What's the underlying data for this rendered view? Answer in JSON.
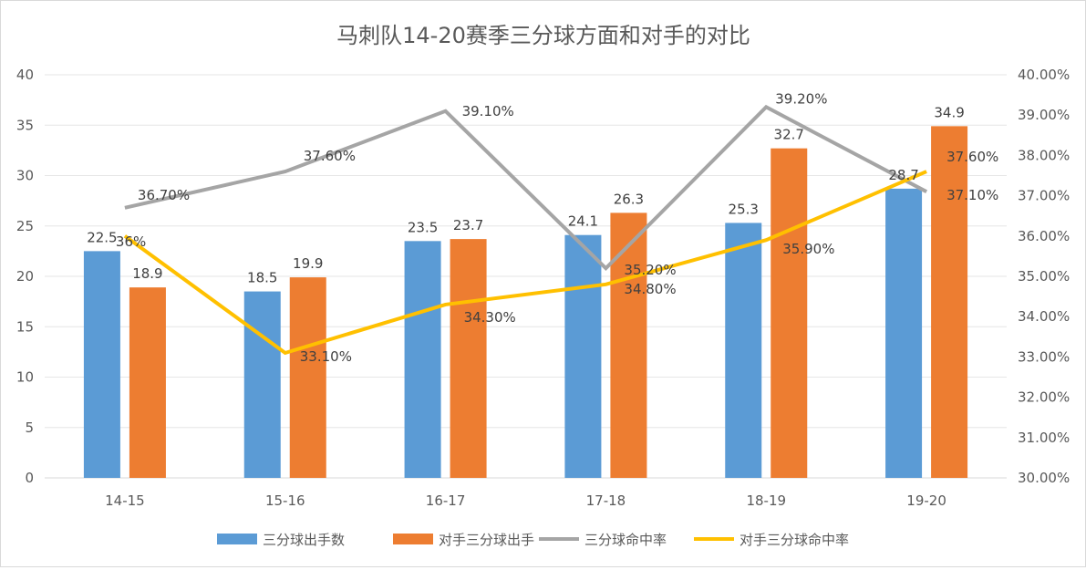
{
  "chart_data": {
    "type": "bar",
    "title": "马刺队14-20赛季三分球方面和对手的对比",
    "categories": [
      "14-15",
      "15-16",
      "16-17",
      "17-18",
      "18-19",
      "19-20"
    ],
    "y_left": {
      "min": 0,
      "max": 40,
      "step": 5,
      "ticks": [
        "0",
        "5",
        "10",
        "15",
        "20",
        "25",
        "30",
        "35",
        "40"
      ]
    },
    "y_right": {
      "min": 30,
      "max": 40,
      "step": 1,
      "ticks": [
        "30.00%",
        "31.00%",
        "32.00%",
        "33.00%",
        "34.00%",
        "35.00%",
        "36.00%",
        "37.00%",
        "38.00%",
        "39.00%",
        "40.00%"
      ]
    },
    "gridlines": true,
    "legend_position": "bottom",
    "series": [
      {
        "name": "三分球出手数",
        "type": "bar",
        "axis": "left",
        "color": "#5B9BD5",
        "values": [
          22.5,
          18.5,
          23.5,
          24.1,
          25.3,
          28.7
        ],
        "labels": [
          "22.5",
          "18.5",
          "23.5",
          "24.1",
          "25.3",
          "28.7"
        ]
      },
      {
        "name": "对手三分球出手",
        "type": "bar",
        "axis": "left",
        "color": "#ED7D31",
        "values": [
          18.9,
          19.9,
          23.7,
          26.3,
          32.7,
          34.9
        ],
        "labels": [
          "18.9",
          "19.9",
          "23.7",
          "26.3",
          "32.7",
          "34.9"
        ]
      },
      {
        "name": "三分球命中率",
        "type": "line",
        "axis": "right",
        "color": "#A5A5A5",
        "values": [
          36.7,
          37.6,
          39.1,
          35.2,
          39.2,
          37.1
        ],
        "labels": [
          "36.70%",
          "37.60%",
          "39.10%",
          "35.20%",
          "39.20%",
          "37.10%"
        ]
      },
      {
        "name": "对手三分球命中率",
        "type": "line",
        "axis": "right",
        "color": "#FFC000",
        "values": [
          36,
          33.1,
          34.3,
          34.8,
          35.9,
          37.6
        ],
        "labels": [
          "36%",
          "33.10%",
          "34.30%",
          "34.80%",
          "35.90%",
          "37.60%"
        ]
      }
    ]
  }
}
